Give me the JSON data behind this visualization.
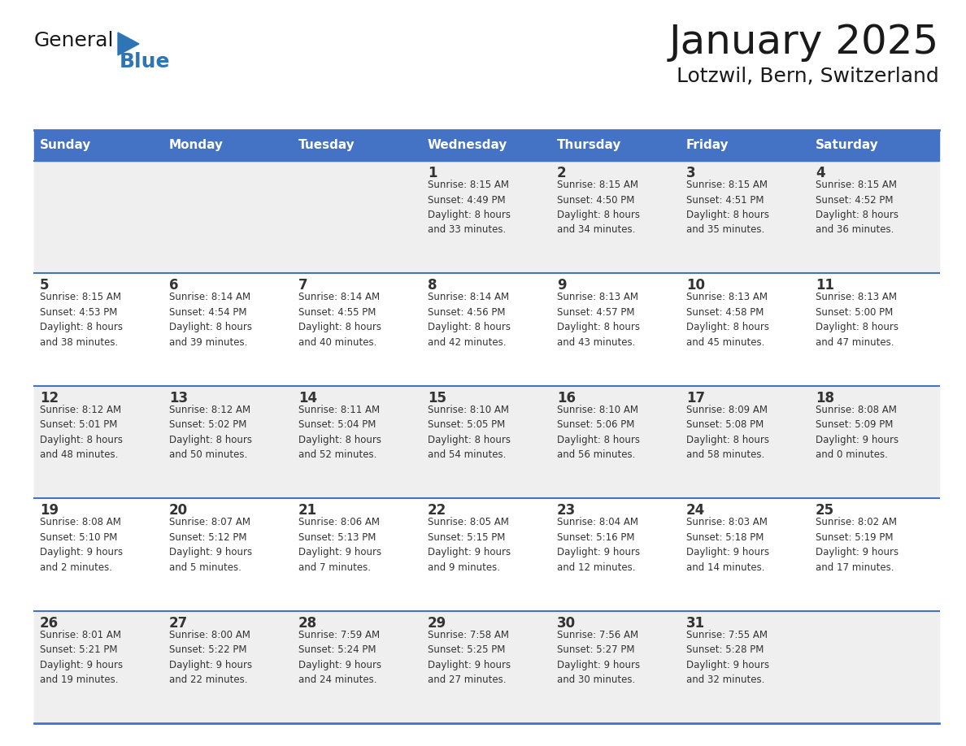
{
  "title": "January 2025",
  "subtitle": "Lotzwil, Bern, Switzerland",
  "title_color": "#1a1a1a",
  "subtitle_color": "#1a1a1a",
  "header_bg_color": "#4472c4",
  "header_text_color": "#ffffff",
  "row_bg_light": "#efefef",
  "row_bg_white": "#ffffff",
  "border_color": "#4472c4",
  "text_color": "#333333",
  "day_headers": [
    "Sunday",
    "Monday",
    "Tuesday",
    "Wednesday",
    "Thursday",
    "Friday",
    "Saturday"
  ],
  "weeks": [
    [
      {
        "day": "",
        "info": ""
      },
      {
        "day": "",
        "info": ""
      },
      {
        "day": "",
        "info": ""
      },
      {
        "day": "1",
        "info": "Sunrise: 8:15 AM\nSunset: 4:49 PM\nDaylight: 8 hours\nand 33 minutes."
      },
      {
        "day": "2",
        "info": "Sunrise: 8:15 AM\nSunset: 4:50 PM\nDaylight: 8 hours\nand 34 minutes."
      },
      {
        "day": "3",
        "info": "Sunrise: 8:15 AM\nSunset: 4:51 PM\nDaylight: 8 hours\nand 35 minutes."
      },
      {
        "day": "4",
        "info": "Sunrise: 8:15 AM\nSunset: 4:52 PM\nDaylight: 8 hours\nand 36 minutes."
      }
    ],
    [
      {
        "day": "5",
        "info": "Sunrise: 8:15 AM\nSunset: 4:53 PM\nDaylight: 8 hours\nand 38 minutes."
      },
      {
        "day": "6",
        "info": "Sunrise: 8:14 AM\nSunset: 4:54 PM\nDaylight: 8 hours\nand 39 minutes."
      },
      {
        "day": "7",
        "info": "Sunrise: 8:14 AM\nSunset: 4:55 PM\nDaylight: 8 hours\nand 40 minutes."
      },
      {
        "day": "8",
        "info": "Sunrise: 8:14 AM\nSunset: 4:56 PM\nDaylight: 8 hours\nand 42 minutes."
      },
      {
        "day": "9",
        "info": "Sunrise: 8:13 AM\nSunset: 4:57 PM\nDaylight: 8 hours\nand 43 minutes."
      },
      {
        "day": "10",
        "info": "Sunrise: 8:13 AM\nSunset: 4:58 PM\nDaylight: 8 hours\nand 45 minutes."
      },
      {
        "day": "11",
        "info": "Sunrise: 8:13 AM\nSunset: 5:00 PM\nDaylight: 8 hours\nand 47 minutes."
      }
    ],
    [
      {
        "day": "12",
        "info": "Sunrise: 8:12 AM\nSunset: 5:01 PM\nDaylight: 8 hours\nand 48 minutes."
      },
      {
        "day": "13",
        "info": "Sunrise: 8:12 AM\nSunset: 5:02 PM\nDaylight: 8 hours\nand 50 minutes."
      },
      {
        "day": "14",
        "info": "Sunrise: 8:11 AM\nSunset: 5:04 PM\nDaylight: 8 hours\nand 52 minutes."
      },
      {
        "day": "15",
        "info": "Sunrise: 8:10 AM\nSunset: 5:05 PM\nDaylight: 8 hours\nand 54 minutes."
      },
      {
        "day": "16",
        "info": "Sunrise: 8:10 AM\nSunset: 5:06 PM\nDaylight: 8 hours\nand 56 minutes."
      },
      {
        "day": "17",
        "info": "Sunrise: 8:09 AM\nSunset: 5:08 PM\nDaylight: 8 hours\nand 58 minutes."
      },
      {
        "day": "18",
        "info": "Sunrise: 8:08 AM\nSunset: 5:09 PM\nDaylight: 9 hours\nand 0 minutes."
      }
    ],
    [
      {
        "day": "19",
        "info": "Sunrise: 8:08 AM\nSunset: 5:10 PM\nDaylight: 9 hours\nand 2 minutes."
      },
      {
        "day": "20",
        "info": "Sunrise: 8:07 AM\nSunset: 5:12 PM\nDaylight: 9 hours\nand 5 minutes."
      },
      {
        "day": "21",
        "info": "Sunrise: 8:06 AM\nSunset: 5:13 PM\nDaylight: 9 hours\nand 7 minutes."
      },
      {
        "day": "22",
        "info": "Sunrise: 8:05 AM\nSunset: 5:15 PM\nDaylight: 9 hours\nand 9 minutes."
      },
      {
        "day": "23",
        "info": "Sunrise: 8:04 AM\nSunset: 5:16 PM\nDaylight: 9 hours\nand 12 minutes."
      },
      {
        "day": "24",
        "info": "Sunrise: 8:03 AM\nSunset: 5:18 PM\nDaylight: 9 hours\nand 14 minutes."
      },
      {
        "day": "25",
        "info": "Sunrise: 8:02 AM\nSunset: 5:19 PM\nDaylight: 9 hours\nand 17 minutes."
      }
    ],
    [
      {
        "day": "26",
        "info": "Sunrise: 8:01 AM\nSunset: 5:21 PM\nDaylight: 9 hours\nand 19 minutes."
      },
      {
        "day": "27",
        "info": "Sunrise: 8:00 AM\nSunset: 5:22 PM\nDaylight: 9 hours\nand 22 minutes."
      },
      {
        "day": "28",
        "info": "Sunrise: 7:59 AM\nSunset: 5:24 PM\nDaylight: 9 hours\nand 24 minutes."
      },
      {
        "day": "29",
        "info": "Sunrise: 7:58 AM\nSunset: 5:25 PM\nDaylight: 9 hours\nand 27 minutes."
      },
      {
        "day": "30",
        "info": "Sunrise: 7:56 AM\nSunset: 5:27 PM\nDaylight: 9 hours\nand 30 minutes."
      },
      {
        "day": "31",
        "info": "Sunrise: 7:55 AM\nSunset: 5:28 PM\nDaylight: 9 hours\nand 32 minutes."
      },
      {
        "day": "",
        "info": ""
      }
    ]
  ],
  "logo_color_general": "#1a1a1a",
  "logo_color_blue": "#2e75b6",
  "logo_triangle_color": "#2e75b6",
  "fig_width": 11.88,
  "fig_height": 9.18,
  "dpi": 100
}
